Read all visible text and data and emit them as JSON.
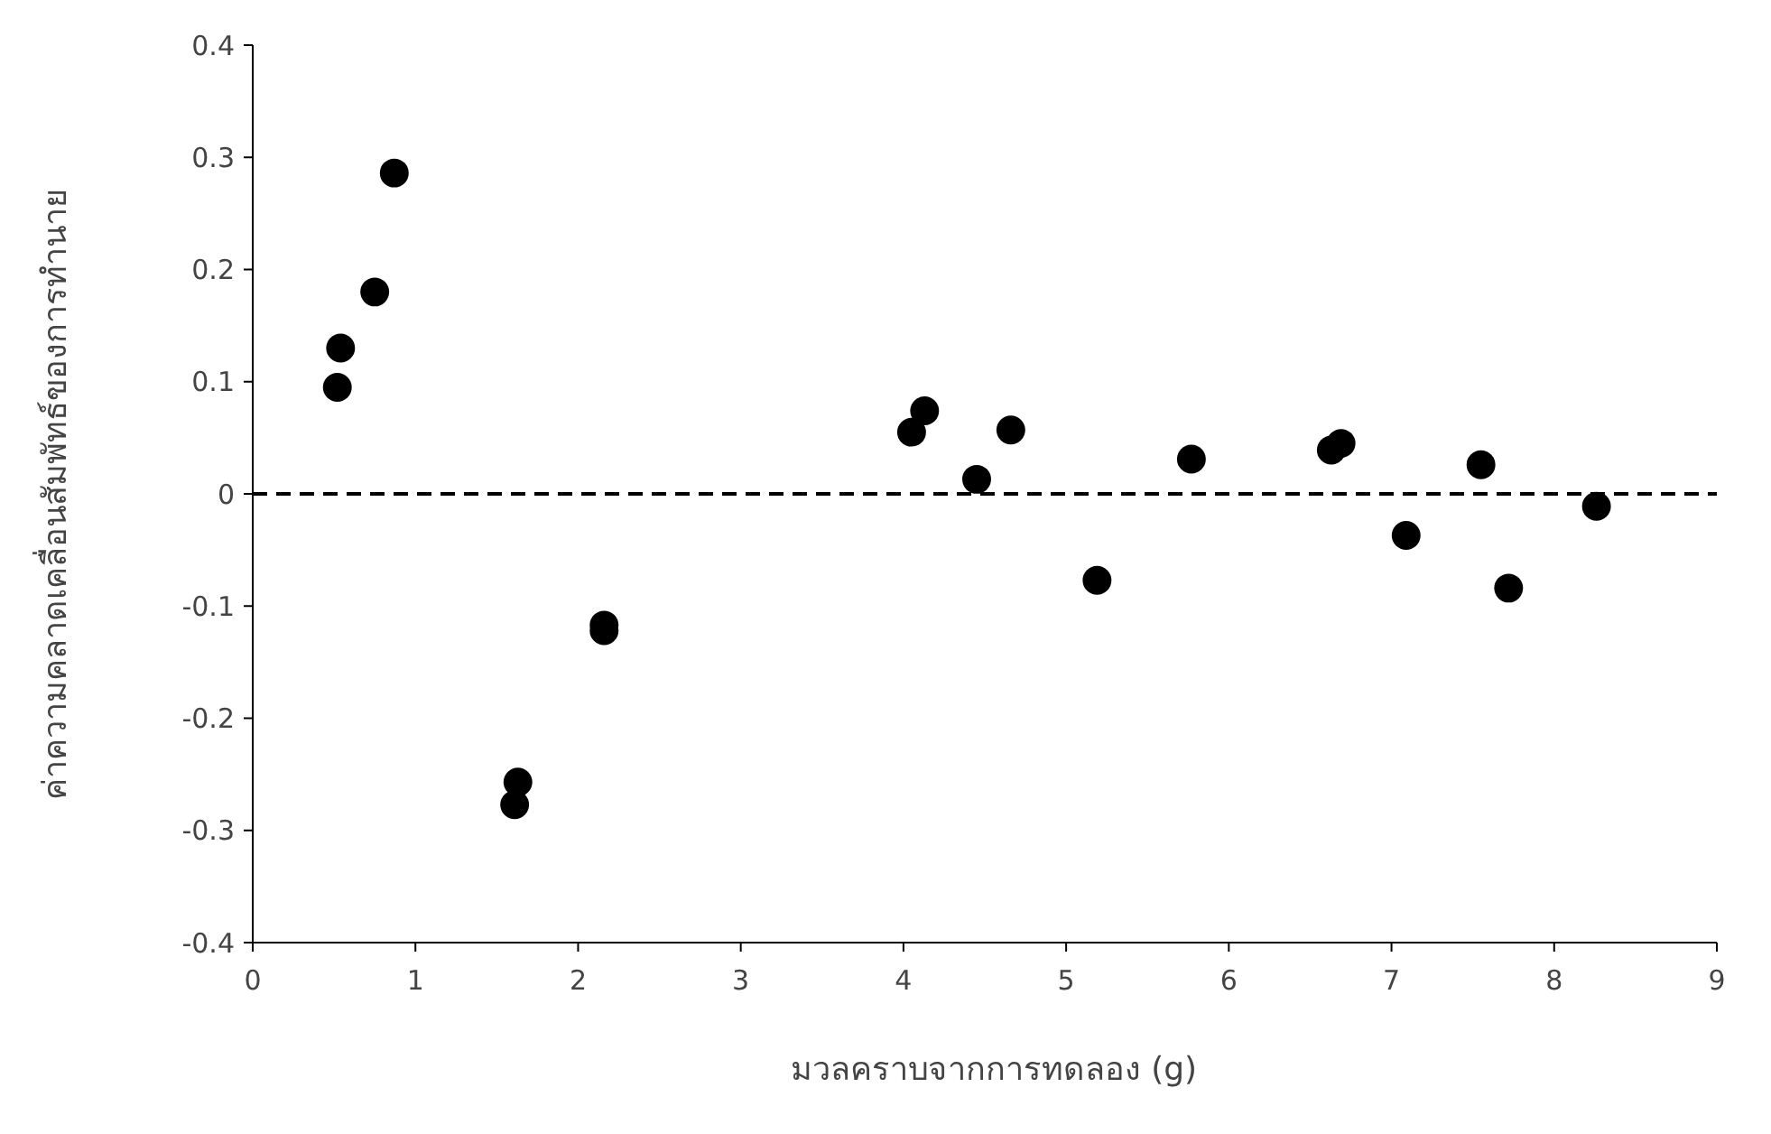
{
  "chart_data": {
    "type": "scatter",
    "xlabel": "มวลคราบจากการทดลอง (g)",
    "ylabel": "ค่าความคลาดเคลื่อนสัมพัทธ์ของการทำนาย",
    "x": [
      0.52,
      0.54,
      0.75,
      0.87,
      1.63,
      1.61,
      2.16,
      2.16,
      4.05,
      4.13,
      4.45,
      4.66,
      5.19,
      5.77,
      6.63,
      6.69,
      7.09,
      7.55,
      7.72,
      8.26
    ],
    "series": [
      {
        "color": "#000000",
        "values": [
          0.095,
          0.13,
          0.18,
          0.286,
          -0.257,
          -0.277,
          -0.117,
          -0.122,
          0.055,
          0.074,
          0.013,
          0.057,
          -0.077,
          0.031,
          0.039,
          0.045,
          -0.037,
          0.026,
          -0.084,
          -0.011
        ]
      }
    ],
    "xlim": [
      0,
      9
    ],
    "xticks": [
      0,
      1,
      2,
      3,
      4,
      5,
      6,
      7,
      8,
      9
    ],
    "ylim": [
      -0.4,
      0.4
    ],
    "yticks": [
      -0.4,
      -0.3,
      -0.2,
      -0.1,
      0,
      0.1,
      0.2,
      0.3,
      0.4
    ],
    "ref_lines": [
      {
        "axis": "y",
        "value": 0,
        "color": "#000000",
        "line_style": "dashed"
      }
    ],
    "marker": "circle",
    "grid": false
  }
}
